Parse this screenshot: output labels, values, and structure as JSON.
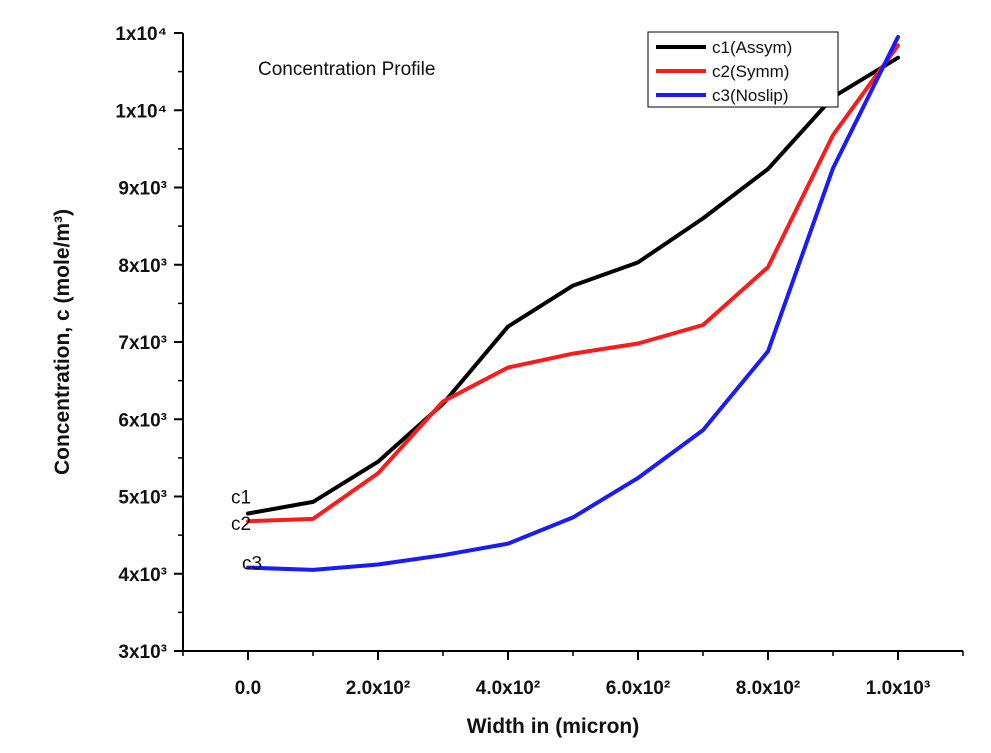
{
  "chart_data": {
    "type": "line",
    "title": "Concentration Profile",
    "xlabel": "Width in (micron)",
    "ylabel": "Concentration, c (mole/m³)",
    "xlim": [
      -100,
      1100
    ],
    "ylim": [
      3000,
      11000
    ],
    "x_ticks": [
      {
        "value": 0,
        "label": "0.0"
      },
      {
        "value": 200,
        "label": "2.0x10²"
      },
      {
        "value": 400,
        "label": "4.0x10²"
      },
      {
        "value": 600,
        "label": "6.0x10²"
      },
      {
        "value": 800,
        "label": "8.0x10²"
      },
      {
        "value": 1000,
        "label": "1.0x10³"
      }
    ],
    "y_ticks": [
      {
        "value": 3000,
        "label": "3x10³"
      },
      {
        "value": 4000,
        "label": "4x10³"
      },
      {
        "value": 5000,
        "label": "5x10³"
      },
      {
        "value": 6000,
        "label": "6x10³"
      },
      {
        "value": 7000,
        "label": "7x10³"
      },
      {
        "value": 8000,
        "label": "8x10³"
      },
      {
        "value": 9000,
        "label": "9x10³"
      },
      {
        "value": 10000,
        "label": "1x10⁴"
      },
      {
        "value": 11000,
        "label": "1x10⁴"
      }
    ],
    "grid": false,
    "legend_position": "top-right",
    "x": [
      0,
      100,
      200,
      300,
      400,
      500,
      600,
      700,
      800,
      900,
      1000
    ],
    "series": [
      {
        "name": "c1(Assym)",
        "color": "#000000",
        "values": [
          4780,
          4930,
          5450,
          6200,
          7200,
          7730,
          8030,
          8600,
          9240,
          10170,
          10680
        ]
      },
      {
        "name": "c2(Symm)",
        "color": "#ff1a1a",
        "values": [
          4680,
          4710,
          5300,
          6230,
          6670,
          6850,
          6980,
          7220,
          7970,
          9680,
          10840
        ]
      },
      {
        "name": "c3(Noslip)",
        "color": "#1a1aff",
        "values": [
          4080,
          4050,
          4120,
          4240,
          4390,
          4730,
          5240,
          5860,
          6880,
          9250,
          10950
        ]
      }
    ],
    "annotations": [
      {
        "text": "c1",
        "x": 0,
        "y": 5000
      },
      {
        "text": "c2",
        "x": 0,
        "y": 4680
      },
      {
        "text": "c3",
        "x": 0,
        "y": 4120
      }
    ]
  }
}
